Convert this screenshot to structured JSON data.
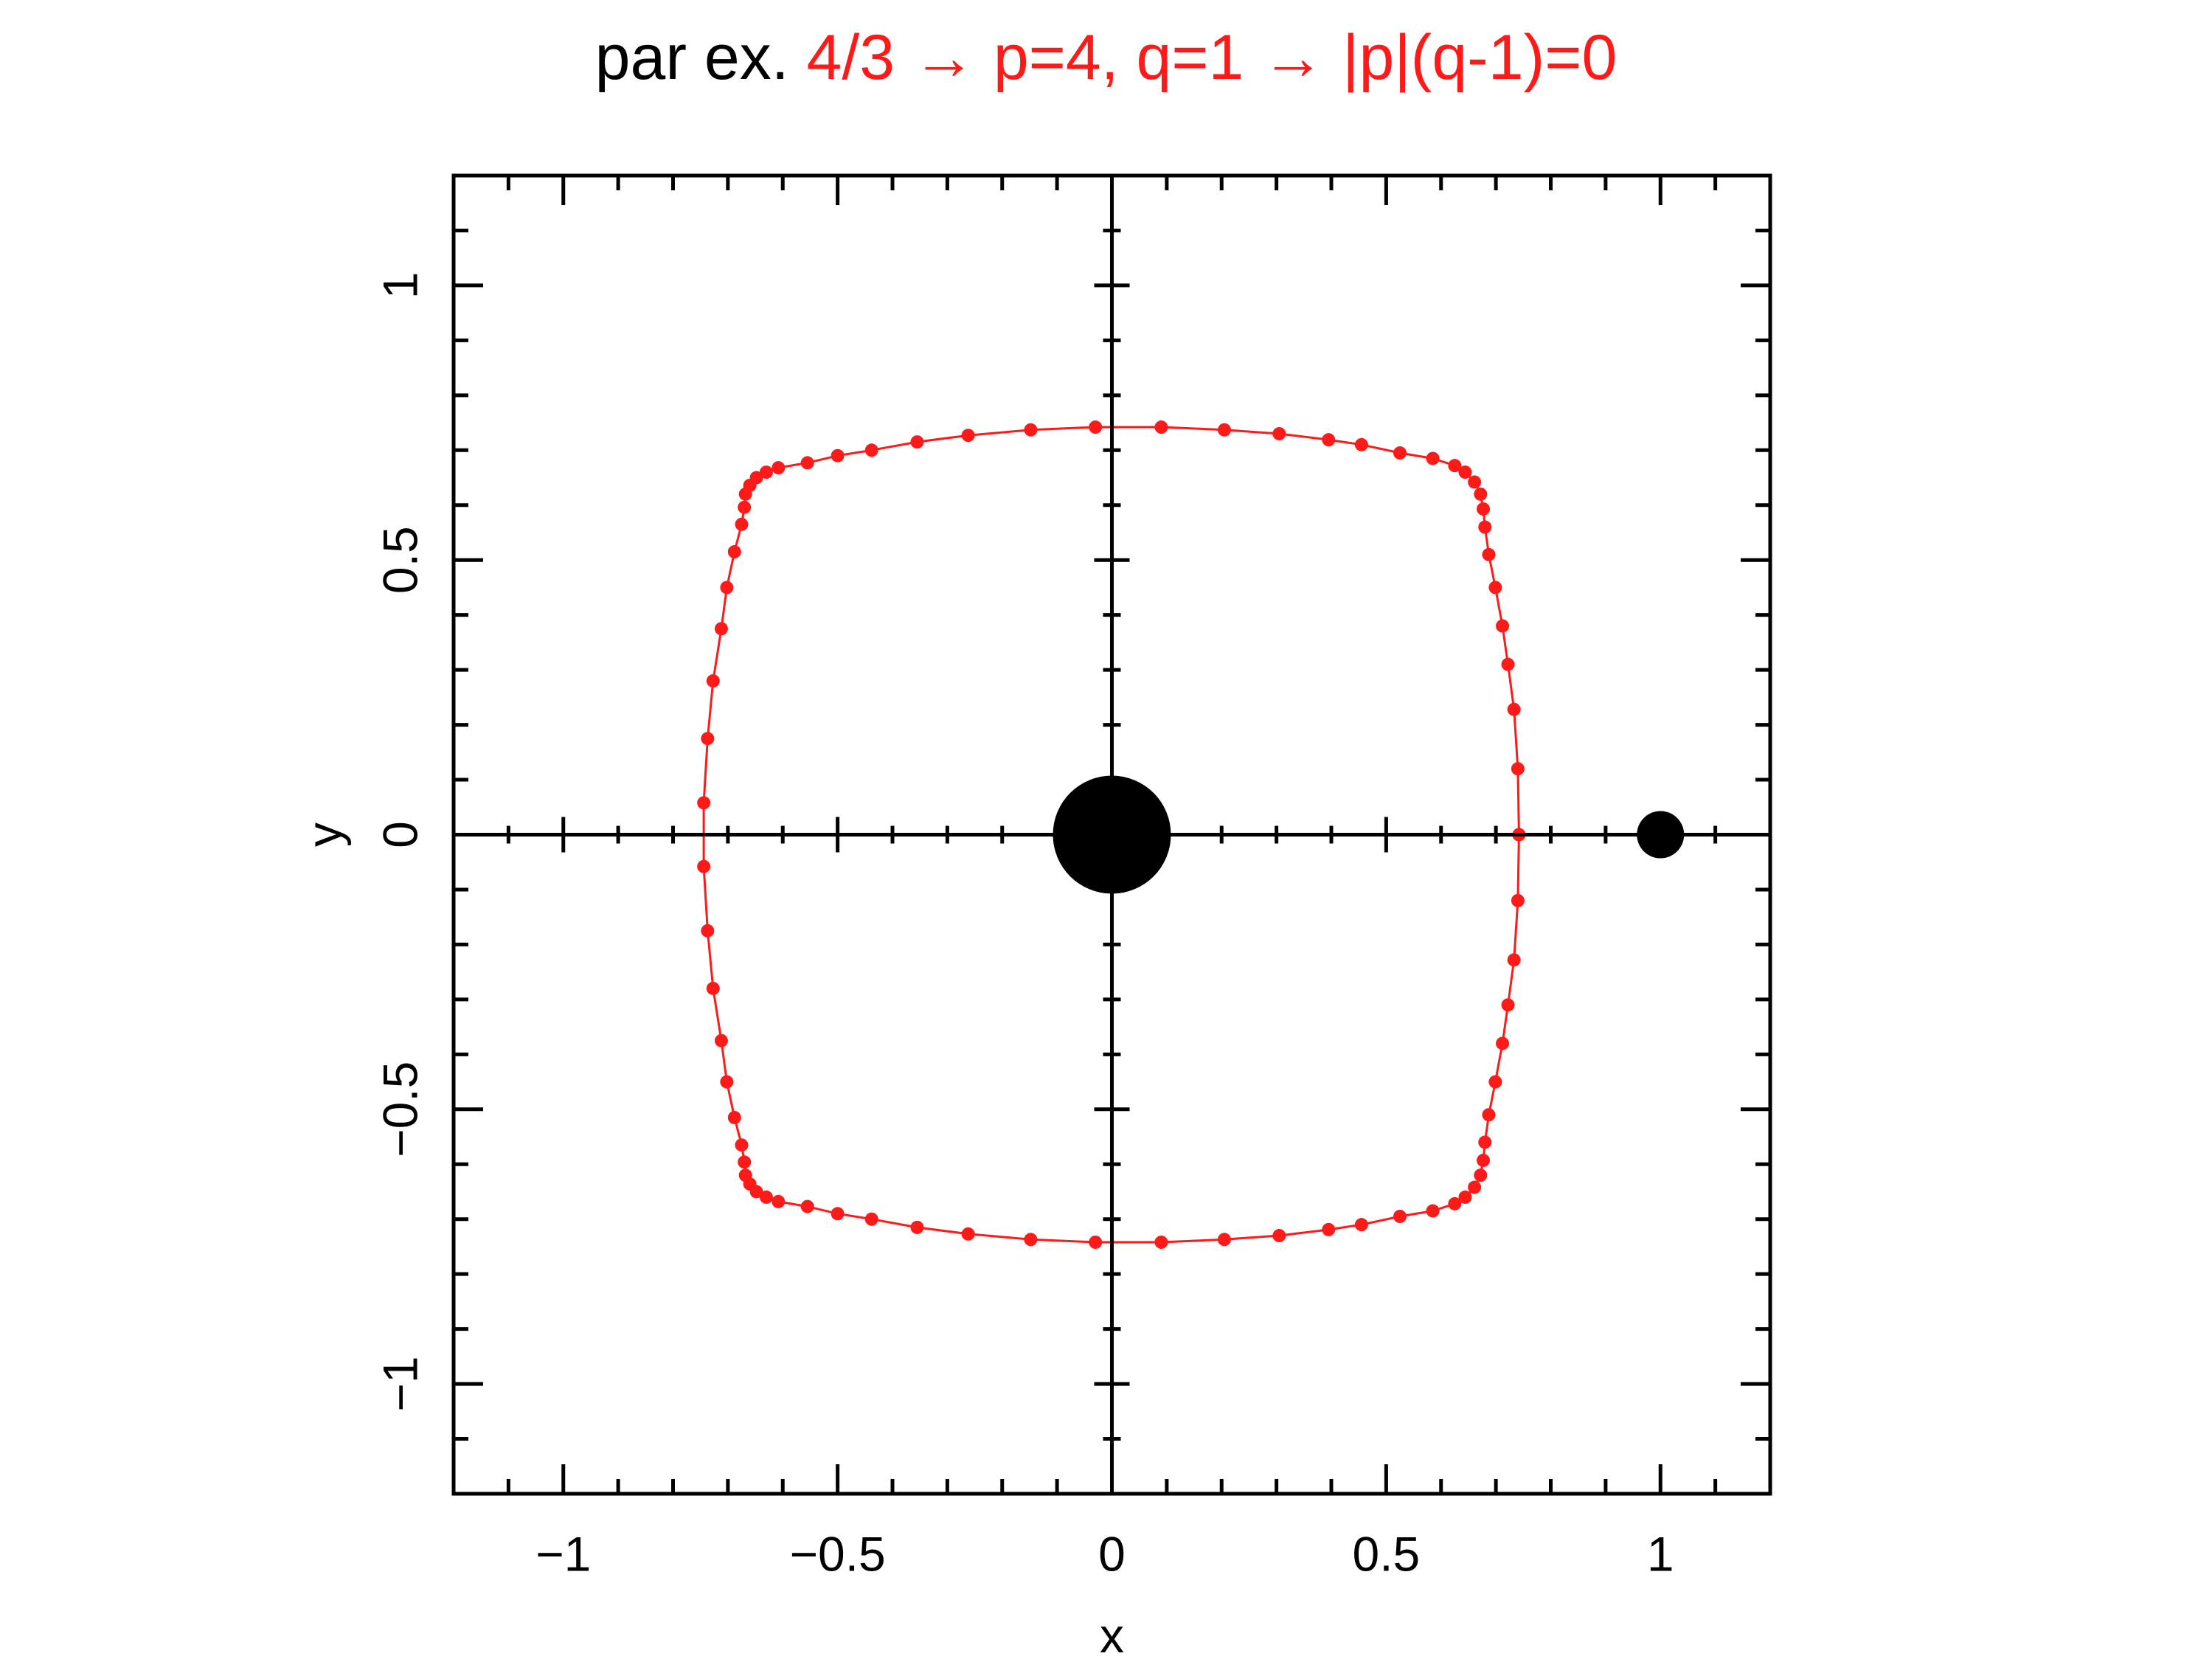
{
  "title": {
    "prefix": "par ex.",
    "highlight": "4/3 → p=4, q=1 → |p|(q-1)=0"
  },
  "colors": {
    "accent": "#ff1a1a",
    "axes": "#000000",
    "bodies": "#000000"
  },
  "chart_data": {
    "type": "scatter",
    "xlabel": "x",
    "ylabel": "y",
    "xlim": [
      -1.2,
      1.2
    ],
    "ylim": [
      -1.2,
      1.2
    ],
    "grid": false,
    "x_ticks": [
      -1,
      -0.5,
      0,
      0.5,
      1
    ],
    "x_tick_labels": [
      "−1",
      "−0.5",
      "0",
      "0.5",
      "1"
    ],
    "y_ticks": [
      -1,
      -0.5,
      0,
      0.5,
      1
    ],
    "y_tick_labels": [
      "−1",
      "−0.5",
      "0",
      "0.5",
      "1"
    ],
    "center_lines": {
      "x": 0,
      "y": 0
    },
    "bodies": [
      {
        "name": "primary",
        "x": 0,
        "y": 0
      },
      {
        "name": "secondary",
        "x": 1,
        "y": 0
      }
    ],
    "series": [
      {
        "color": "#ff1a1a",
        "connected": true,
        "points": [
          [
            0.742,
            0.0
          ],
          [
            0.74,
            0.12
          ],
          [
            0.733,
            0.228
          ],
          [
            0.722,
            0.31
          ],
          [
            0.712,
            0.38
          ],
          [
            0.699,
            0.45
          ],
          [
            0.687,
            0.51
          ],
          [
            0.68,
            0.56
          ],
          [
            0.677,
            0.593
          ],
          [
            0.672,
            0.62
          ],
          [
            0.661,
            0.642
          ],
          [
            0.644,
            0.66
          ],
          [
            0.625,
            0.672
          ],
          [
            0.585,
            0.685
          ],
          [
            0.525,
            0.695
          ],
          [
            0.455,
            0.71
          ],
          [
            0.395,
            0.719
          ],
          [
            0.305,
            0.73
          ],
          [
            0.205,
            0.737
          ],
          [
            0.09,
            0.742
          ],
          [
            -0.03,
            0.742
          ],
          [
            -0.148,
            0.737
          ],
          [
            -0.262,
            0.727
          ],
          [
            -0.355,
            0.715
          ],
          [
            -0.438,
            0.7
          ],
          [
            -0.5,
            0.69
          ],
          [
            -0.555,
            0.677
          ],
          [
            -0.608,
            0.668
          ],
          [
            -0.63,
            0.66
          ],
          [
            -0.648,
            0.65
          ],
          [
            -0.66,
            0.636
          ],
          [
            -0.668,
            0.62
          ],
          [
            -0.67,
            0.596
          ],
          [
            -0.675,
            0.565
          ],
          [
            -0.688,
            0.515
          ],
          [
            -0.702,
            0.45
          ],
          [
            -0.712,
            0.375
          ],
          [
            -0.727,
            0.28
          ],
          [
            -0.737,
            0.175
          ],
          [
            -0.744,
            0.058
          ],
          [
            -0.744,
            -0.058
          ],
          [
            -0.737,
            -0.175
          ],
          [
            -0.727,
            -0.28
          ],
          [
            -0.712,
            -0.375
          ],
          [
            -0.702,
            -0.45
          ],
          [
            -0.688,
            -0.515
          ],
          [
            -0.675,
            -0.565
          ],
          [
            -0.67,
            -0.596
          ],
          [
            -0.668,
            -0.62
          ],
          [
            -0.66,
            -0.636
          ],
          [
            -0.648,
            -0.65
          ],
          [
            -0.63,
            -0.66
          ],
          [
            -0.608,
            -0.668
          ],
          [
            -0.555,
            -0.677
          ],
          [
            -0.5,
            -0.69
          ],
          [
            -0.438,
            -0.7
          ],
          [
            -0.355,
            -0.715
          ],
          [
            -0.262,
            -0.727
          ],
          [
            -0.148,
            -0.737
          ],
          [
            -0.03,
            -0.742
          ],
          [
            0.09,
            -0.742
          ],
          [
            0.205,
            -0.737
          ],
          [
            0.305,
            -0.73
          ],
          [
            0.395,
            -0.719
          ],
          [
            0.455,
            -0.71
          ],
          [
            0.525,
            -0.695
          ],
          [
            0.585,
            -0.685
          ],
          [
            0.625,
            -0.672
          ],
          [
            0.644,
            -0.66
          ],
          [
            0.661,
            -0.642
          ],
          [
            0.672,
            -0.62
          ],
          [
            0.677,
            -0.593
          ],
          [
            0.68,
            -0.56
          ],
          [
            0.687,
            -0.51
          ],
          [
            0.699,
            -0.45
          ],
          [
            0.712,
            -0.38
          ],
          [
            0.722,
            -0.31
          ],
          [
            0.733,
            -0.228
          ],
          [
            0.74,
            -0.12
          ],
          [
            0.742,
            0.0
          ]
        ]
      }
    ]
  }
}
